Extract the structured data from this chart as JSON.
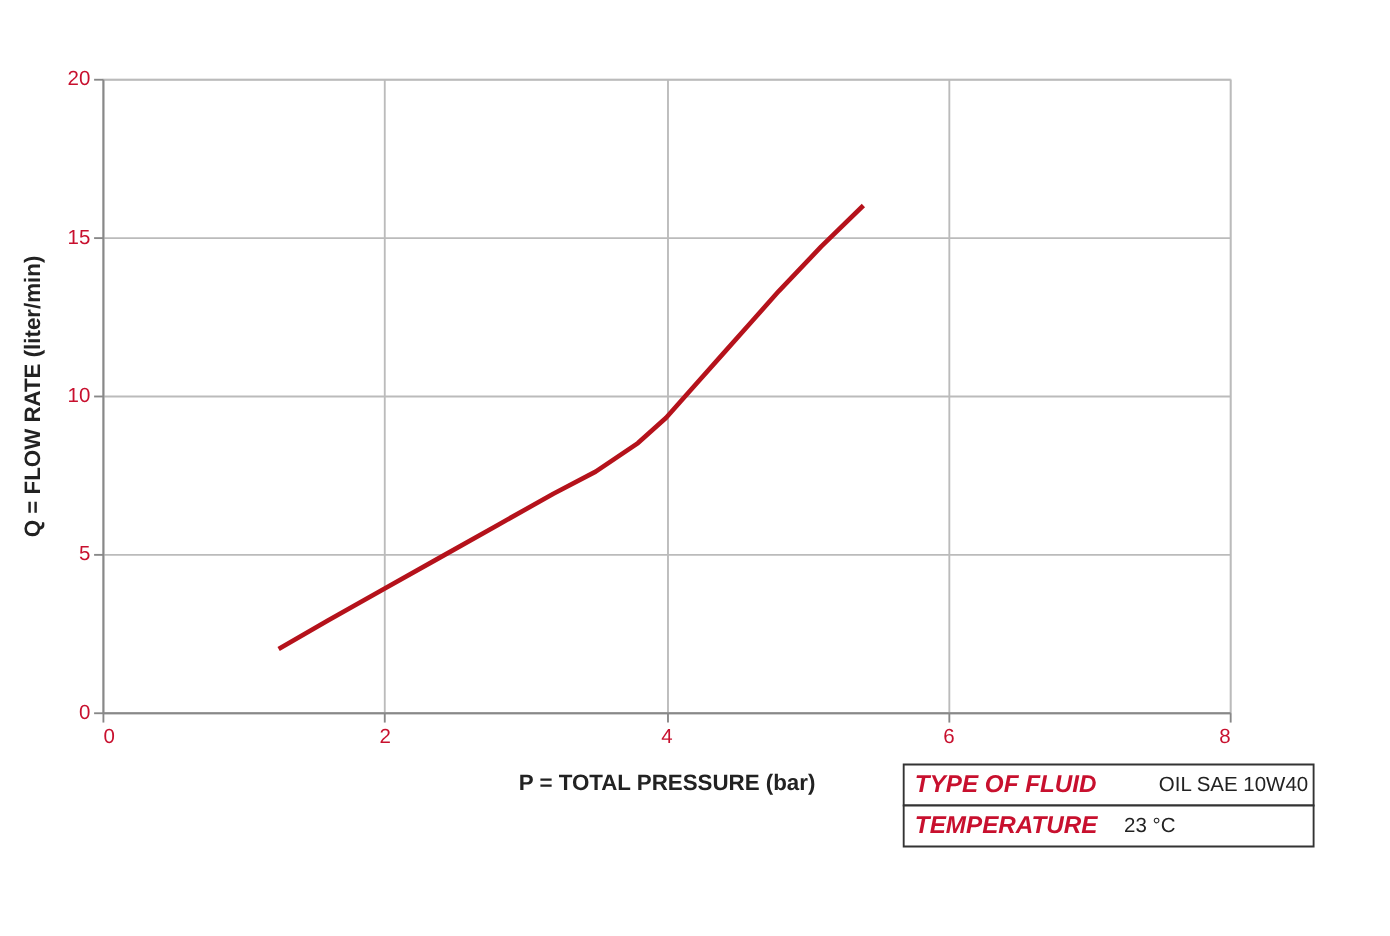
{
  "chart_data": {
    "type": "line",
    "xlabel": "P = TOTAL PRESSURE (bar)",
    "ylabel": "Q = FLOW RATE (liter/min)",
    "x": [
      1.25,
      1.6,
      2.0,
      2.4,
      2.8,
      3.2,
      3.5,
      3.8,
      4.0,
      4.2,
      4.4,
      4.6,
      4.8,
      5.1,
      5.4
    ],
    "series": [
      {
        "color": "#b5121b",
        "values": [
          2.0,
          2.9,
          3.9,
          4.9,
          5.9,
          6.9,
          7.6,
          8.5,
          9.3,
          10.3,
          11.3,
          12.3,
          13.3,
          14.7,
          16.0
        ]
      }
    ],
    "xlim": [
      0,
      8
    ],
    "xticks": [
      0,
      2,
      4,
      6,
      8
    ],
    "ylim": [
      0,
      20
    ],
    "yticks": [
      0,
      5,
      10,
      15,
      20
    ],
    "grid": true,
    "marker": "none",
    "line_style": "solid",
    "annotations": [
      "TYPE OF FLUID",
      "OIL SAE 10W40",
      "TEMPERATURE",
      "23 °C"
    ]
  }
}
